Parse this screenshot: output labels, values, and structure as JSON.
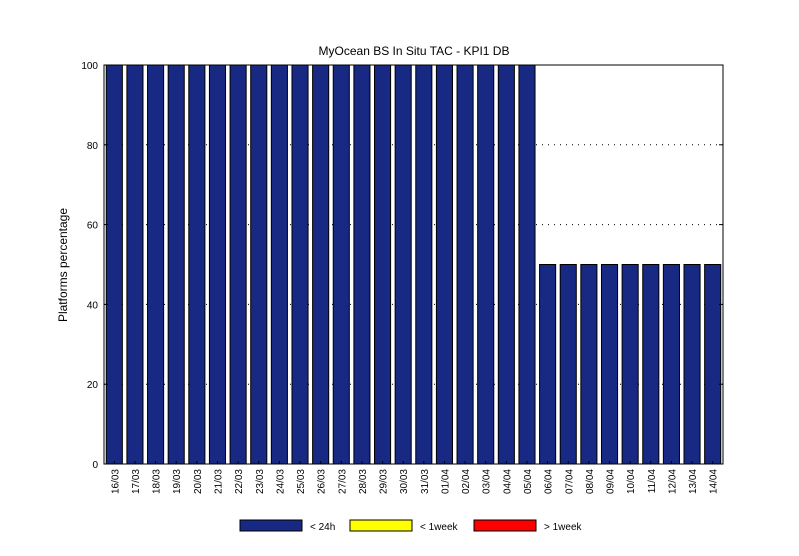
{
  "chart_data": {
    "type": "bar",
    "title": "MyOcean  BS In Situ TAC - KPI1  DB",
    "ylabel": "Platforms percentage",
    "xlabel": "",
    "ylim": [
      0,
      100
    ],
    "yticks": [
      0,
      20,
      40,
      60,
      80,
      100
    ],
    "grid": true,
    "stacked": true,
    "legend_position": "bottom",
    "categories": [
      "16/03",
      "17/03",
      "18/03",
      "19/03",
      "20/03",
      "21/03",
      "22/03",
      "23/03",
      "24/03",
      "25/03",
      "26/03",
      "27/03",
      "28/03",
      "29/03",
      "30/03",
      "31/03",
      "01/04",
      "02/04",
      "03/04",
      "04/04",
      "05/04",
      "06/04",
      "07/04",
      "08/04",
      "09/04",
      "10/04",
      "11/04",
      "12/04",
      "13/04",
      "14/04"
    ],
    "series": [
      {
        "name": "< 24h",
        "color": "#172983",
        "values": [
          100,
          100,
          100,
          100,
          100,
          100,
          100,
          100,
          100,
          100,
          100,
          100,
          100,
          100,
          100,
          100,
          100,
          100,
          100,
          100,
          100,
          50,
          50,
          50,
          50,
          50,
          50,
          50,
          50,
          50
        ]
      },
      {
        "name": "< 1week",
        "color": "#ffff00",
        "values": [
          0,
          0,
          0,
          0,
          0,
          0,
          0,
          0,
          0,
          0,
          0,
          0,
          0,
          0,
          0,
          0,
          0,
          0,
          0,
          0,
          0,
          0,
          0,
          0,
          0,
          0,
          0,
          0,
          0,
          0
        ]
      },
      {
        "name": "> 1week",
        "color": "#ff0000",
        "values": [
          0,
          0,
          0,
          0,
          0,
          0,
          0,
          0,
          0,
          0,
          0,
          0,
          0,
          0,
          0,
          0,
          0,
          0,
          0,
          0,
          0,
          0,
          0,
          0,
          0,
          0,
          0,
          0,
          0,
          0
        ]
      }
    ]
  }
}
